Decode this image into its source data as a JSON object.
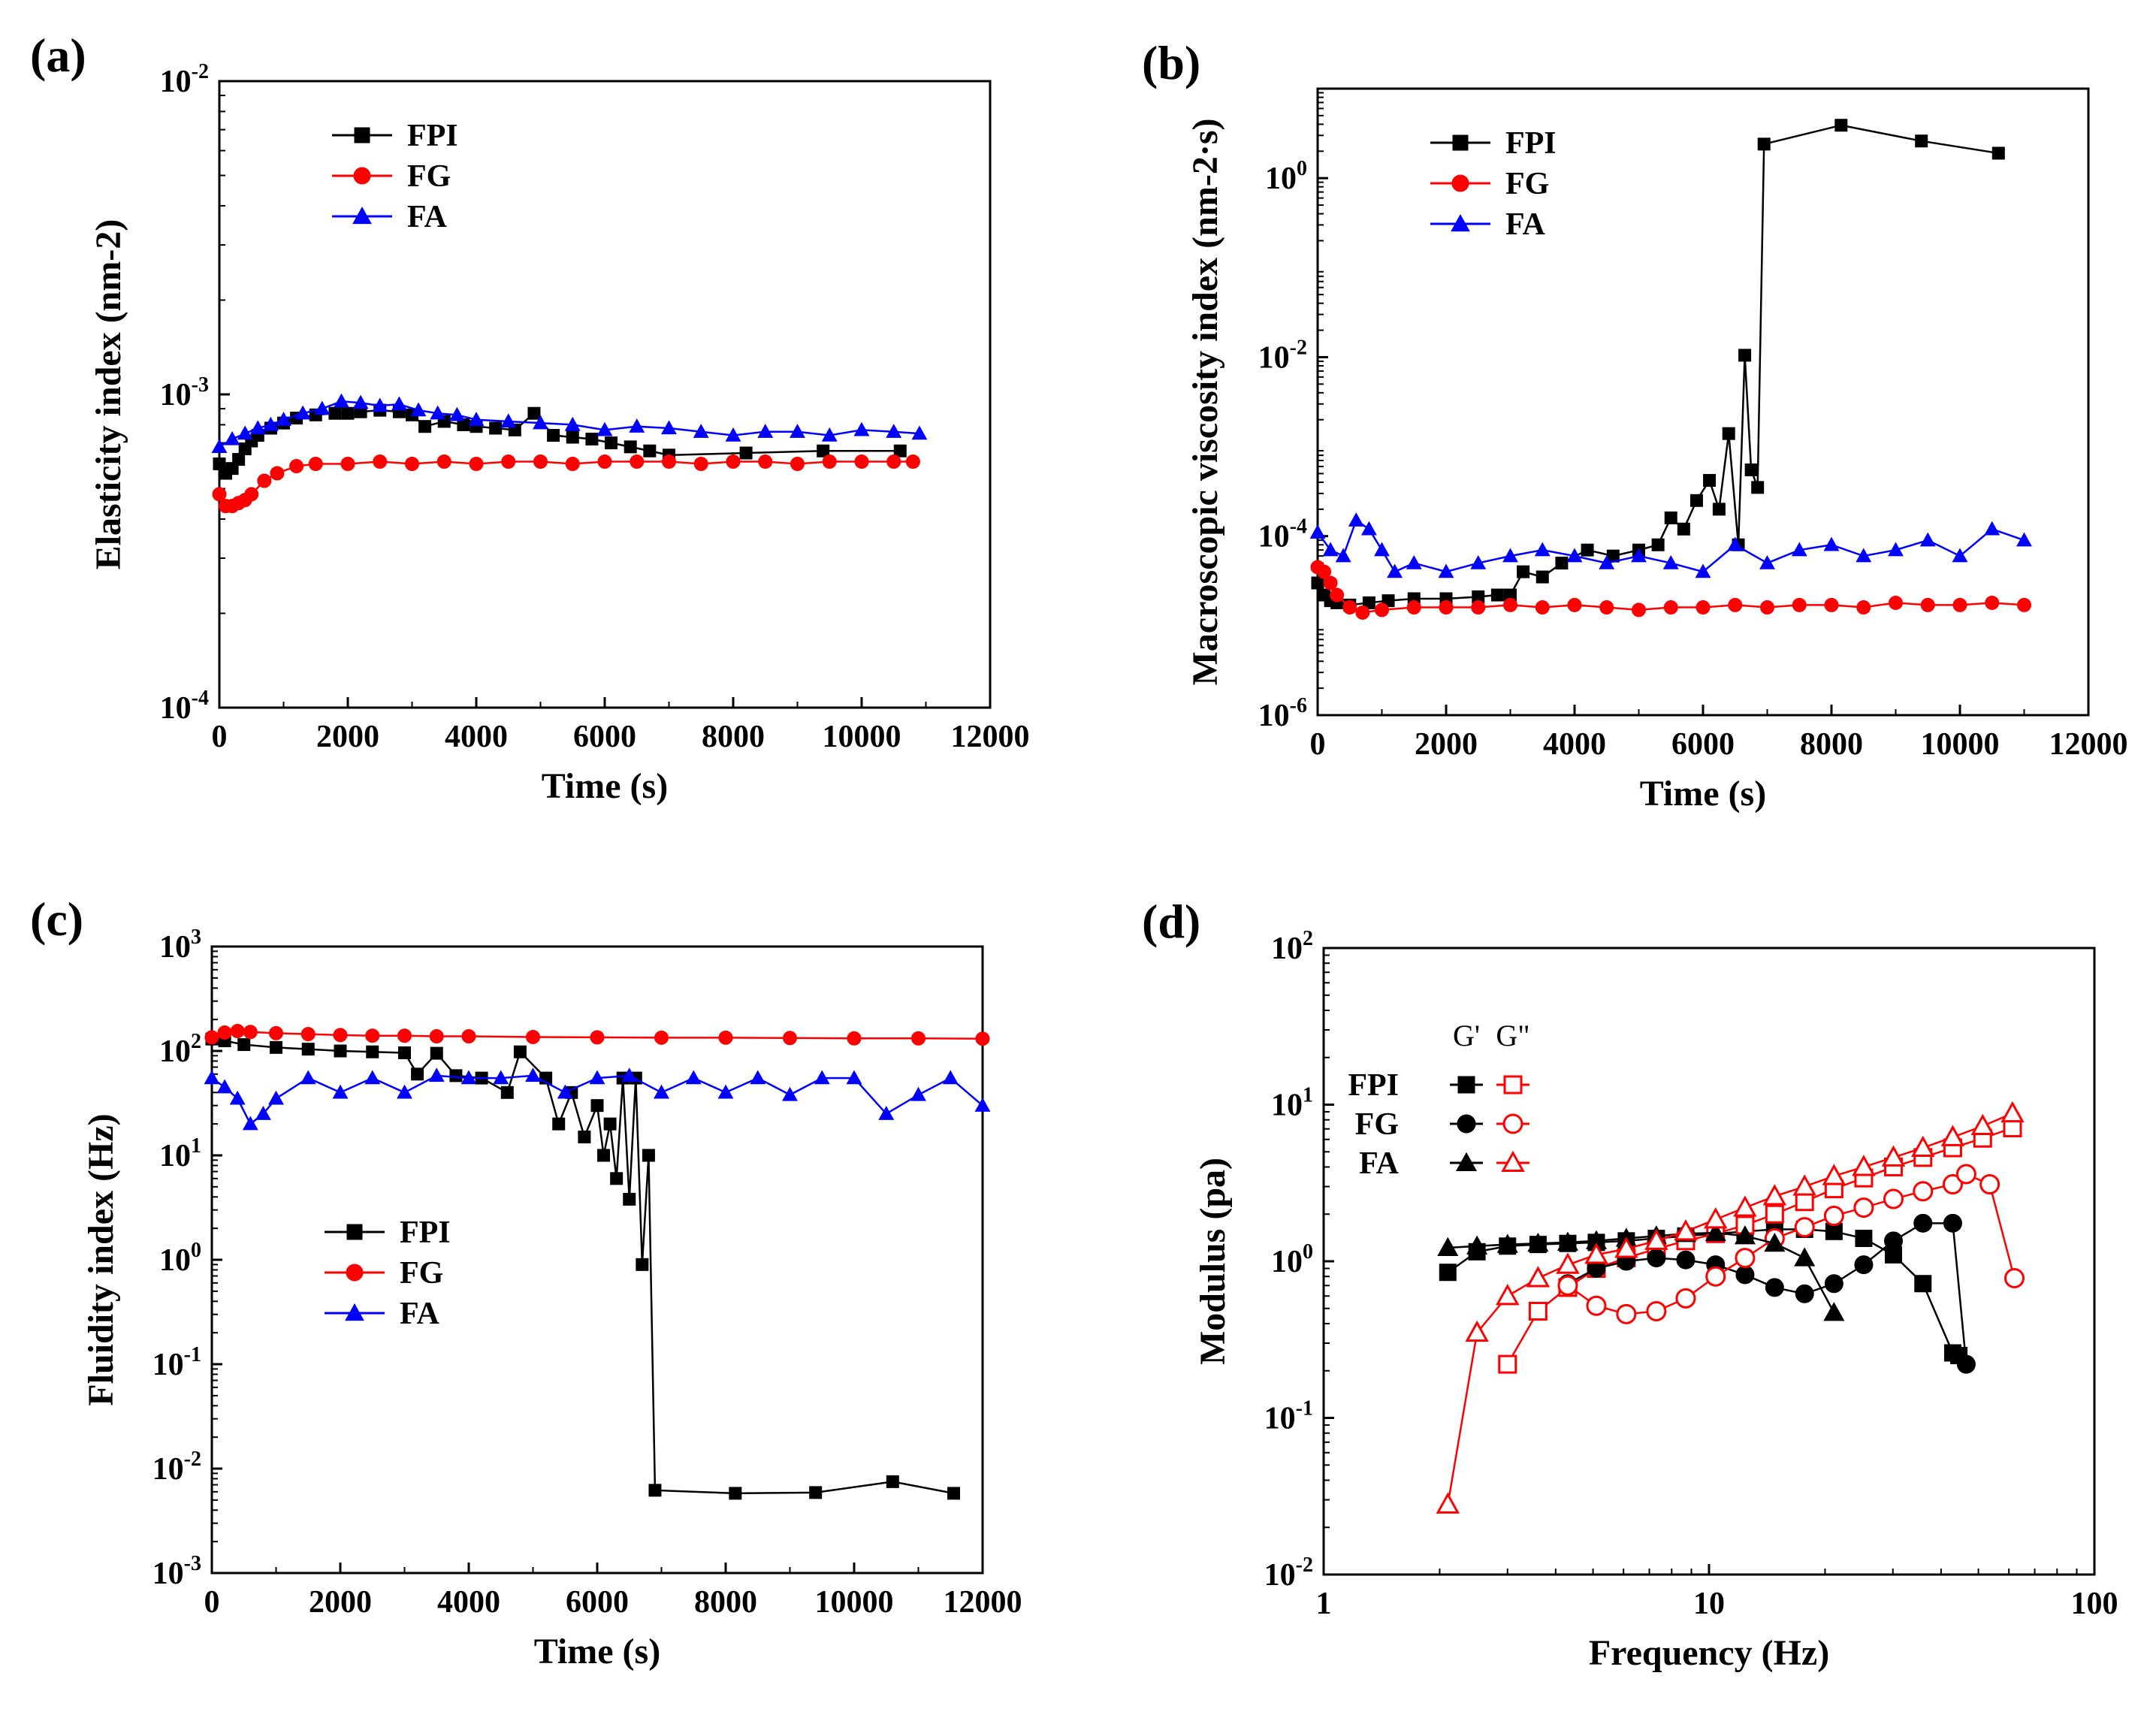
{
  "chart_data": [
    {
      "id": "a",
      "panel_label": "(a)",
      "type": "scatter",
      "title": "",
      "xlabel": "Time (s)",
      "ylabel": "Elasticity index (nm<sup>-2</sup>)",
      "ylabel_text": "Elasticity index (nm-2)",
      "xlim": [
        0,
        12000
      ],
      "ylim_log10": [
        -4,
        -2
      ],
      "yscale": "log",
      "xticks": [
        0,
        2000,
        4000,
        6000,
        8000,
        10000,
        12000
      ],
      "xtick_labels": [
        "0",
        "2000",
        "4000",
        "6000",
        "8000",
        "10000",
        "12000"
      ],
      "ytick_exps": [
        -4,
        -3,
        -2
      ],
      "ytick_base": "10",
      "ytick_sups": [
        "-4",
        "-3",
        "-2"
      ],
      "legend_position": "top-left",
      "legend": [
        "FPI",
        "FG",
        "FA"
      ],
      "series": [
        {
          "name": "FPI",
          "color": "#000000",
          "marker": "square",
          "x": [
            0,
            100,
            200,
            300,
            400,
            500,
            600,
            800,
            1000,
            1200,
            1500,
            1800,
            2000,
            2200,
            2500,
            2800,
            3000,
            3200,
            3500,
            3800,
            4000,
            4300,
            4600,
            4900,
            5200,
            5500,
            5800,
            6100,
            6400,
            6700,
            7000,
            8200,
            9400,
            10600
          ],
          "y": [
            0.0006,
            0.00056,
            0.00058,
            0.00062,
            0.00067,
            0.00071,
            0.00074,
            0.00078,
            0.00081,
            0.00084,
            0.00086,
            0.00087,
            0.00087,
            0.00088,
            0.00089,
            0.00088,
            0.00086,
            0.00079,
            0.00082,
            0.0008,
            0.00079,
            0.00078,
            0.00077,
            0.00087,
            0.00074,
            0.00073,
            0.00072,
            0.0007,
            0.00068,
            0.00066,
            0.00064,
            0.00065,
            0.00066,
            0.00066
          ]
        },
        {
          "name": "FG",
          "color": "#ff0000",
          "marker": "circle",
          "x": [
            0,
            100,
            200,
            300,
            400,
            500,
            700,
            900,
            1200,
            1500,
            2000,
            2500,
            3000,
            3500,
            4000,
            4500,
            5000,
            5500,
            6000,
            6500,
            7000,
            7500,
            8000,
            8500,
            9000,
            9500,
            10000,
            10500,
            10800
          ],
          "y": [
            0.00048,
            0.00044,
            0.00044,
            0.00045,
            0.00046,
            0.00048,
            0.00053,
            0.00056,
            0.00059,
            0.0006,
            0.0006,
            0.00061,
            0.0006,
            0.00061,
            0.0006,
            0.00061,
            0.00061,
            0.0006,
            0.00061,
            0.00061,
            0.00061,
            0.0006,
            0.00061,
            0.00061,
            0.0006,
            0.00061,
            0.00061,
            0.00061,
            0.00061
          ]
        },
        {
          "name": "FA",
          "color": "#0000ff",
          "marker": "triangle",
          "x": [
            0,
            200,
            400,
            600,
            800,
            1000,
            1300,
            1600,
            1900,
            2200,
            2500,
            2800,
            3100,
            3400,
            3700,
            4000,
            4500,
            5000,
            5500,
            6000,
            6500,
            7000,
            7500,
            8000,
            8500,
            9000,
            9500,
            10000,
            10500,
            10900
          ],
          "y": [
            0.00068,
            0.00072,
            0.00075,
            0.00078,
            0.0008,
            0.00083,
            0.00087,
            0.0009,
            0.00095,
            0.00094,
            0.00092,
            0.00093,
            0.00089,
            0.00087,
            0.00086,
            0.00083,
            0.00082,
            0.00081,
            0.0008,
            0.00077,
            0.00079,
            0.00078,
            0.00076,
            0.00074,
            0.00076,
            0.00076,
            0.00074,
            0.00077,
            0.00076,
            0.00075
          ]
        }
      ]
    },
    {
      "id": "b",
      "panel_label": "(b)",
      "type": "scatter",
      "title": "",
      "xlabel": "Time (s)",
      "ylabel_text": "Macroscopic viscosity index (nm-2·s)",
      "xlim": [
        0,
        12000
      ],
      "ylim_log10": [
        -6,
        1
      ],
      "yscale": "log",
      "xticks": [
        0,
        2000,
        4000,
        6000,
        8000,
        10000,
        12000
      ],
      "xtick_labels": [
        "0",
        "2000",
        "4000",
        "6000",
        "8000",
        "10000",
        "12000"
      ],
      "ytick_exps": [
        -6,
        -4,
        -2,
        0
      ],
      "ytick_base": "10",
      "ytick_sups": [
        "-6",
        "-4",
        "-2",
        "0"
      ],
      "legend_position": "top-left",
      "legend": [
        "FPI",
        "FG",
        "FA"
      ],
      "series": [
        {
          "name": "FPI",
          "color": "#000000",
          "marker": "square",
          "x": [
            0,
            100,
            200,
            300,
            500,
            800,
            1100,
            1500,
            2000,
            2500,
            2800,
            3000,
            3200,
            3500,
            3800,
            4200,
            4600,
            5000,
            5300,
            5500,
            5700,
            5900,
            6100,
            6250,
            6400,
            6550,
            6650,
            6750,
            6850,
            6950,
            8150,
            9400,
            10600
          ],
          "y": [
            3e-05,
            2.2e-05,
            1.9e-05,
            1.8e-05,
            1.7e-05,
            1.8e-05,
            1.9e-05,
            2e-05,
            2e-05,
            2.1e-05,
            2.2e-05,
            2.2e-05,
            4e-05,
            3.5e-05,
            5e-05,
            7e-05,
            6e-05,
            7e-05,
            8e-05,
            0.00016,
            0.00012,
            0.00025,
            0.00042,
            0.0002,
            0.0014,
            8e-05,
            0.0105,
            0.00055,
            0.00035,
            2.4,
            3.9,
            2.6,
            1.9
          ]
        },
        {
          "name": "FG",
          "color": "#ff0000",
          "marker": "circle",
          "x": [
            0,
            100,
            200,
            300,
            500,
            700,
            1000,
            1500,
            2000,
            2500,
            3000,
            3500,
            4000,
            4500,
            5000,
            5500,
            6000,
            6500,
            7000,
            7500,
            8000,
            8500,
            9000,
            9500,
            10000,
            10500,
            11000
          ],
          "y": [
            4.5e-05,
            4e-05,
            3e-05,
            2.2e-05,
            1.6e-05,
            1.4e-05,
            1.5e-05,
            1.6e-05,
            1.6e-05,
            1.6e-05,
            1.7e-05,
            1.6e-05,
            1.7e-05,
            1.6e-05,
            1.5e-05,
            1.6e-05,
            1.6e-05,
            1.7e-05,
            1.6e-05,
            1.7e-05,
            1.7e-05,
            1.6e-05,
            1.8e-05,
            1.7e-05,
            1.7e-05,
            1.8e-05,
            1.7e-05
          ]
        },
        {
          "name": "FA",
          "color": "#0000ff",
          "marker": "triangle",
          "x": [
            0,
            200,
            400,
            600,
            800,
            1000,
            1200,
            1500,
            2000,
            2500,
            3000,
            3500,
            4000,
            4500,
            5000,
            5500,
            6000,
            6500,
            7000,
            7500,
            8000,
            8500,
            9000,
            9500,
            10000,
            10500,
            11000
          ],
          "y": [
            0.00011,
            7e-05,
            6e-05,
            0.00015,
            0.00012,
            7e-05,
            4e-05,
            5e-05,
            4e-05,
            5e-05,
            6e-05,
            7e-05,
            6e-05,
            5e-05,
            6e-05,
            5e-05,
            4e-05,
            8e-05,
            5e-05,
            7e-05,
            8e-05,
            6e-05,
            7e-05,
            9e-05,
            6e-05,
            0.00012,
            9e-05
          ]
        }
      ]
    },
    {
      "id": "c",
      "panel_label": "(c)",
      "type": "scatter",
      "title": "",
      "xlabel": "Time (s)",
      "ylabel_text": "Fluidity index (Hz)",
      "xlim": [
        0,
        12000
      ],
      "ylim_log10": [
        -3,
        3
      ],
      "yscale": "log",
      "xticks": [
        0,
        2000,
        4000,
        6000,
        8000,
        10000,
        12000
      ],
      "xtick_labels": [
        "0",
        "2000",
        "4000",
        "6000",
        "8000",
        "10000",
        "12000"
      ],
      "ytick_exps": [
        -3,
        -2,
        -1,
        0,
        1,
        2,
        3
      ],
      "ytick_base": "10",
      "ytick_sups": [
        "-3",
        "-2",
        "-1",
        "0",
        "1",
        "2",
        "3"
      ],
      "legend_position": "center-left",
      "legend": [
        "FPI",
        "FG",
        "FA"
      ],
      "series": [
        {
          "name": "FPI",
          "color": "#000000",
          "marker": "square",
          "x": [
            0,
            200,
            500,
            1000,
            1500,
            2000,
            2500,
            3000,
            3200,
            3500,
            3800,
            4200,
            4600,
            4800,
            5200,
            5400,
            5600,
            5800,
            6000,
            6100,
            6200,
            6300,
            6400,
            6500,
            6600,
            6700,
            6800,
            6900,
            8150,
            9400,
            10600,
            11550
          ],
          "y": [
            130,
            125,
            115,
            108,
            104,
            100,
            98,
            96,
            60,
            95,
            58,
            55,
            40,
            98,
            55,
            20,
            40,
            15,
            30,
            10,
            20,
            6,
            55,
            3.8,
            55,
            0.9,
            10,
            0.0062,
            0.0058,
            0.0059,
            0.0075,
            0.0058
          ]
        },
        {
          "name": "FG",
          "color": "#ff0000",
          "marker": "circle",
          "x": [
            0,
            200,
            400,
            600,
            1000,
            1500,
            2000,
            2500,
            3000,
            3500,
            4000,
            5000,
            6000,
            7000,
            8000,
            9000,
            10000,
            11000,
            12000
          ],
          "y": [
            135,
            150,
            155,
            152,
            148,
            145,
            142,
            140,
            140,
            138,
            138,
            136,
            135,
            134,
            134,
            133,
            132,
            132,
            131
          ]
        },
        {
          "name": "FA",
          "color": "#0000ff",
          "marker": "triangle",
          "x": [
            0,
            200,
            400,
            600,
            800,
            1000,
            1500,
            2000,
            2500,
            3000,
            3500,
            4000,
            4500,
            5000,
            5500,
            6000,
            6500,
            7000,
            7500,
            8000,
            8500,
            9000,
            9500,
            10000,
            10500,
            11000,
            11500,
            12000
          ],
          "y": [
            55,
            45,
            35,
            20,
            25,
            35,
            55,
            40,
            55,
            40,
            58,
            55,
            55,
            58,
            40,
            55,
            58,
            40,
            55,
            40,
            55,
            38,
            55,
            55,
            25,
            38,
            55,
            30
          ]
        }
      ]
    },
    {
      "id": "d",
      "panel_label": "(d)",
      "type": "line",
      "title": "",
      "xlabel": "Frequency (Hz)",
      "ylabel_text": "Modulus (pa)",
      "xscale": "log",
      "yscale": "log",
      "xlim_log10": [
        0,
        2
      ],
      "ylim_log10": [
        -2,
        2
      ],
      "xticks_log10": [
        0,
        1,
        2
      ],
      "xtick_labels": [
        "1",
        "10",
        "100"
      ],
      "ytick_exps": [
        -2,
        -1,
        0,
        1,
        2
      ],
      "ytick_base": "10",
      "ytick_sups": [
        "-2",
        "-1",
        "0",
        "1",
        "2"
      ],
      "legend_position": "top-left",
      "legend_header": [
        "G'",
        "G\""
      ],
      "legend": [
        "FPI",
        "FG",
        "FA"
      ],
      "series": [
        {
          "name": "FPI G'",
          "color": "#000000",
          "marker": "square",
          "filled": true,
          "x": [
            2.1,
            2.5,
            3.0,
            3.6,
            4.3,
            5.1,
            6.1,
            7.3,
            8.7,
            10.4,
            12.4,
            14.8,
            17.7,
            21.1,
            25.2,
            30.1,
            35.9,
            42.9,
            44.5
          ],
          "y": [
            0.85,
            1.15,
            1.25,
            1.28,
            1.3,
            1.32,
            1.35,
            1.4,
            1.45,
            1.5,
            1.55,
            1.6,
            1.6,
            1.55,
            1.4,
            1.1,
            0.72,
            0.26,
            0.25
          ]
        },
        {
          "name": "FPI G\"",
          "color": "#ff0000",
          "marker": "square",
          "filled": false,
          "x": [
            3.0,
            3.6,
            4.3,
            5.1,
            6.1,
            7.3,
            8.7,
            10.4,
            12.4,
            14.8,
            17.7,
            21.1,
            25.2,
            30.1,
            35.9,
            42.9,
            51.3,
            61.3
          ],
          "y": [
            0.22,
            0.48,
            0.68,
            0.9,
            1.05,
            1.2,
            1.35,
            1.5,
            1.7,
            2.0,
            2.4,
            2.9,
            3.4,
            4.0,
            4.6,
            5.3,
            6.1,
            7.1
          ]
        },
        {
          "name": "FG G'",
          "color": "#000000",
          "marker": "circle",
          "filled": true,
          "x": [
            4.3,
            5.1,
            6.1,
            7.3,
            8.7,
            10.4,
            12.4,
            14.8,
            17.7,
            21.1,
            25.2,
            30.1,
            35.9,
            42.9,
            46.5
          ],
          "y": [
            0.72,
            0.9,
            1.0,
            1.05,
            1.02,
            0.95,
            0.82,
            0.68,
            0.62,
            0.72,
            0.95,
            1.35,
            1.75,
            1.75,
            0.22
          ]
        },
        {
          "name": "FG G\"",
          "color": "#ff0000",
          "marker": "circle",
          "filled": false,
          "x": [
            4.3,
            5.1,
            6.1,
            7.3,
            8.7,
            10.4,
            12.4,
            14.8,
            17.7,
            21.1,
            25.2,
            30.1,
            35.9,
            42.9,
            46.5,
            53.5,
            62.0
          ],
          "y": [
            0.7,
            0.52,
            0.46,
            0.48,
            0.58,
            0.8,
            1.05,
            1.4,
            1.65,
            1.95,
            2.2,
            2.5,
            2.8,
            3.1,
            3.6,
            3.1,
            0.78
          ]
        },
        {
          "name": "FA G'",
          "color": "#000000",
          "marker": "triangle",
          "filled": true,
          "x": [
            2.1,
            2.5,
            3.0,
            3.6,
            4.3,
            5.1,
            6.1,
            7.3,
            8.7,
            10.4,
            12.4,
            14.8,
            17.7,
            21.1
          ],
          "y": [
            1.22,
            1.25,
            1.28,
            1.3,
            1.32,
            1.35,
            1.4,
            1.45,
            1.5,
            1.52,
            1.45,
            1.3,
            1.05,
            0.47
          ]
        },
        {
          "name": "FA G\"",
          "color": "#ff0000",
          "marker": "triangle",
          "filled": false,
          "x": [
            2.1,
            2.5,
            3.0,
            3.6,
            4.3,
            5.1,
            6.1,
            7.3,
            8.7,
            10.4,
            12.4,
            14.8,
            17.7,
            21.1,
            25.2,
            30.1,
            35.9,
            42.9,
            51.3,
            61.3
          ],
          "y": [
            0.028,
            0.35,
            0.6,
            0.78,
            0.95,
            1.1,
            1.2,
            1.35,
            1.55,
            1.85,
            2.2,
            2.6,
            3.0,
            3.5,
            4.0,
            4.6,
            5.3,
            6.2,
            7.3,
            8.8
          ]
        }
      ]
    }
  ]
}
